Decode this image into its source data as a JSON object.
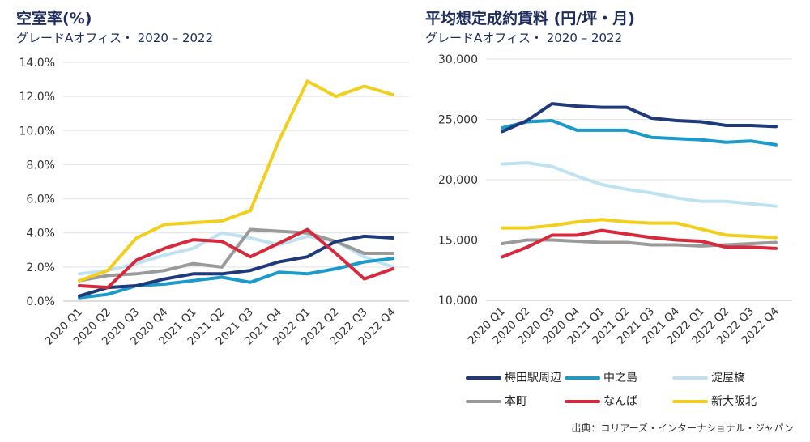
{
  "colors": {
    "梅田駅周辺": "#1f3a7a",
    "中之島": "#1a9bcc",
    "淀屋橋": "#bfe2f2",
    "本町": "#9a9a9a",
    "なんば": "#d6293c",
    "新大阪北": "#f2cf1d"
  },
  "left": {
    "title": "空室率(%)",
    "subtitle": "グレードAオフィス・ 2020 – 2022"
  },
  "right": {
    "title": "平均想定成約賃料 (円/坪・月)",
    "subtitle": "グレードAオフィス・ 2020 – 2022"
  },
  "legend": {
    "items": [
      "梅田駅周辺",
      "中之島",
      "淀屋橋",
      "本町",
      "なんば",
      "新大阪北"
    ]
  },
  "source": "出典：コリアーズ・インターナショナル・ジャパン",
  "chart_data": [
    {
      "type": "line",
      "title": "空室率(%)",
      "subtitle": "グレードAオフィス・ 2020 – 2022",
      "categories": [
        "2020 Q1",
        "2020 Q2",
        "2020 Q3",
        "2020 Q4",
        "2021 Q1",
        "2021 Q2",
        "2021 Q3",
        "2021 Q4",
        "2022 Q1",
        "2022 Q2",
        "2022 Q3",
        "2022 Q4"
      ],
      "ylim": [
        0,
        14
      ],
      "yticks": [
        0,
        2,
        4,
        6,
        8,
        10,
        12,
        14
      ],
      "ytick_labels": [
        "0.0%",
        "2.0%",
        "4.0%",
        "6.0%",
        "8.0%",
        "10.0%",
        "12.0%",
        "14.0%"
      ],
      "grid": true,
      "series": [
        {
          "name": "淀屋橋",
          "values": [
            1.6,
            1.8,
            2.2,
            2.7,
            3.1,
            4.0,
            3.7,
            3.3,
            3.8,
            3.5,
            2.6,
            2.0
          ]
        },
        {
          "name": "本町",
          "values": [
            1.2,
            1.5,
            1.6,
            1.8,
            2.2,
            2.0,
            4.2,
            4.1,
            4.0,
            3.5,
            2.8,
            2.8
          ]
        },
        {
          "name": "中之島",
          "values": [
            0.2,
            0.4,
            0.9,
            1.0,
            1.2,
            1.4,
            1.1,
            1.7,
            1.6,
            1.9,
            2.3,
            2.5
          ]
        },
        {
          "name": "梅田駅周辺",
          "values": [
            0.3,
            0.8,
            0.9,
            1.3,
            1.6,
            1.6,
            1.8,
            2.3,
            2.6,
            3.5,
            3.8,
            3.7
          ]
        },
        {
          "name": "なんば",
          "values": [
            0.9,
            0.8,
            2.4,
            3.1,
            3.6,
            3.5,
            2.6,
            3.4,
            4.2,
            2.8,
            1.3,
            1.9
          ]
        },
        {
          "name": "新大阪北",
          "values": [
            1.2,
            1.8,
            3.7,
            4.5,
            4.6,
            4.7,
            5.3,
            9.4,
            12.9,
            12.0,
            12.6,
            12.1
          ]
        }
      ]
    },
    {
      "type": "line",
      "title": "平均想定成約賃料 (円/坪・月)",
      "subtitle": "グレードAオフィス・ 2020 – 2022",
      "categories": [
        "2020 Q1",
        "2020 Q2",
        "2020 Q3",
        "2020 Q4",
        "2021 Q1",
        "2021 Q2",
        "2021 Q3",
        "2021 Q4",
        "2022 Q1",
        "2022 Q2",
        "2022 Q3",
        "2022 Q4"
      ],
      "ylim": [
        10000,
        30000
      ],
      "yticks": [
        10000,
        15000,
        20000,
        25000,
        30000
      ],
      "ytick_labels": [
        "10,000",
        "15,000",
        "20,000",
        "25,000",
        "30,000"
      ],
      "grid": true,
      "series": [
        {
          "name": "淀屋橋",
          "values": [
            21300,
            21400,
            21100,
            20300,
            19600,
            19200,
            18900,
            18500,
            18200,
            18200,
            18000,
            17800
          ]
        },
        {
          "name": "本町",
          "values": [
            14700,
            15000,
            15000,
            14900,
            14800,
            14800,
            14600,
            14600,
            14500,
            14600,
            14700,
            14800
          ]
        },
        {
          "name": "中之島",
          "values": [
            24300,
            24800,
            24900,
            24100,
            24100,
            24100,
            23500,
            23400,
            23300,
            23100,
            23200,
            22900
          ]
        },
        {
          "name": "梅田駅周辺",
          "values": [
            24000,
            24900,
            26300,
            26100,
            26000,
            26000,
            25100,
            24900,
            24800,
            24500,
            24500,
            24400
          ]
        },
        {
          "name": "なんば",
          "values": [
            13600,
            14400,
            15400,
            15400,
            15800,
            15500,
            15200,
            15000,
            14900,
            14400,
            14400,
            14300
          ]
        },
        {
          "name": "新大阪北",
          "values": [
            16000,
            16000,
            16200,
            16500,
            16700,
            16500,
            16400,
            16400,
            15900,
            15400,
            15300,
            15200
          ]
        }
      ]
    }
  ]
}
